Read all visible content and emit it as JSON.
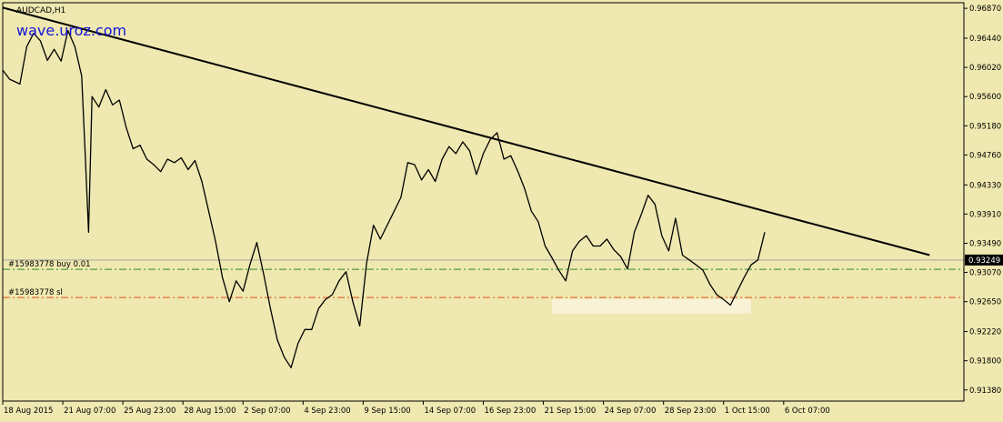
{
  "chart_data": {
    "type": "line",
    "title": "AUDCAD,H1",
    "watermark": "wave.uroz.com",
    "symbol": "AUDCAD",
    "timeframe": "H1",
    "ylim": [
      0.9122,
      0.9695
    ],
    "y_ticks": [
      "0.96870",
      "0.96440",
      "0.96020",
      "0.95600",
      "0.95180",
      "0.94760",
      "0.94330",
      "0.93910",
      "0.93490",
      "0.93070",
      "0.92650",
      "0.92220",
      "0.91800",
      "0.91380"
    ],
    "x_tick_labels": [
      "18 Aug 2015",
      "21 Aug 07:00",
      "25 Aug 23:00",
      "28 Aug 15:00",
      "2 Sep 07:00",
      "4 Sep 23:00",
      "9 Sep 15:00",
      "14 Sep 07:00",
      "16 Sep 23:00",
      "21 Sep 15:00",
      "24 Sep 07:00",
      "28 Sep 23:00",
      "1 Oct 15:00",
      "6 Oct 07:00"
    ],
    "x_count": 280,
    "series": [
      {
        "values": [
          [
            0,
            0.9598
          ],
          [
            2,
            0.9585
          ],
          [
            5,
            0.9578
          ],
          [
            7,
            0.9632
          ],
          [
            9,
            0.9651
          ],
          [
            11,
            0.964
          ],
          [
            13,
            0.9612
          ],
          [
            15,
            0.9628
          ],
          [
            17,
            0.9611
          ],
          [
            19,
            0.9655
          ],
          [
            21,
            0.9632
          ],
          [
            23,
            0.959
          ],
          [
            24,
            0.948
          ],
          [
            25,
            0.9365
          ],
          [
            26,
            0.956
          ],
          [
            28,
            0.9545
          ],
          [
            30,
            0.957
          ],
          [
            32,
            0.9548
          ],
          [
            34,
            0.9555
          ],
          [
            36,
            0.9515
          ],
          [
            38,
            0.9485
          ],
          [
            40,
            0.949
          ],
          [
            42,
            0.947
          ],
          [
            44,
            0.9462
          ],
          [
            46,
            0.9452
          ],
          [
            48,
            0.947
          ],
          [
            50,
            0.9465
          ],
          [
            52,
            0.9472
          ],
          [
            54,
            0.9455
          ],
          [
            56,
            0.9468
          ],
          [
            58,
            0.9438
          ],
          [
            60,
            0.9395
          ],
          [
            62,
            0.9352
          ],
          [
            64,
            0.93
          ],
          [
            66,
            0.9265
          ],
          [
            68,
            0.9295
          ],
          [
            70,
            0.928
          ],
          [
            72,
            0.9318
          ],
          [
            74,
            0.935
          ],
          [
            76,
            0.9305
          ],
          [
            78,
            0.9255
          ],
          [
            80,
            0.921
          ],
          [
            82,
            0.9185
          ],
          [
            84,
            0.917
          ],
          [
            86,
            0.9205
          ],
          [
            88,
            0.9225
          ],
          [
            90,
            0.9225
          ],
          [
            92,
            0.9255
          ],
          [
            94,
            0.9268
          ],
          [
            96,
            0.9275
          ],
          [
            98,
            0.9295
          ],
          [
            100,
            0.9308
          ],
          [
            102,
            0.9265
          ],
          [
            104,
            0.923
          ],
          [
            106,
            0.932
          ],
          [
            108,
            0.9375
          ],
          [
            110,
            0.9355
          ],
          [
            112,
            0.9375
          ],
          [
            114,
            0.9395
          ],
          [
            116,
            0.9415
          ],
          [
            118,
            0.9465
          ],
          [
            120,
            0.9462
          ],
          [
            122,
            0.944
          ],
          [
            124,
            0.9455
          ],
          [
            126,
            0.9438
          ],
          [
            128,
            0.947
          ],
          [
            130,
            0.9488
          ],
          [
            132,
            0.9478
          ],
          [
            134,
            0.9495
          ],
          [
            136,
            0.9482
          ],
          [
            138,
            0.9448
          ],
          [
            140,
            0.9478
          ],
          [
            142,
            0.9498
          ],
          [
            144,
            0.9508
          ],
          [
            146,
            0.947
          ],
          [
            148,
            0.9475
          ],
          [
            150,
            0.9453
          ],
          [
            152,
            0.9428
          ],
          [
            154,
            0.9395
          ],
          [
            156,
            0.938
          ],
          [
            158,
            0.9345
          ],
          [
            160,
            0.9328
          ],
          [
            162,
            0.931
          ],
          [
            164,
            0.9295
          ],
          [
            166,
            0.9338
          ],
          [
            168,
            0.9352
          ],
          [
            170,
            0.936
          ],
          [
            172,
            0.9345
          ],
          [
            174,
            0.9345
          ],
          [
            176,
            0.9355
          ],
          [
            178,
            0.934
          ],
          [
            180,
            0.933
          ],
          [
            182,
            0.9312
          ],
          [
            184,
            0.9365
          ],
          [
            186,
            0.939
          ],
          [
            188,
            0.9418
          ],
          [
            190,
            0.9405
          ],
          [
            192,
            0.936
          ],
          [
            194,
            0.9338
          ],
          [
            196,
            0.9385
          ],
          [
            198,
            0.9332
          ],
          [
            200,
            0.9325
          ],
          [
            202,
            0.9318
          ],
          [
            204,
            0.931
          ],
          [
            206,
            0.929
          ],
          [
            208,
            0.9275
          ],
          [
            210,
            0.9268
          ],
          [
            212,
            0.926
          ],
          [
            214,
            0.928
          ],
          [
            216,
            0.93
          ],
          [
            218,
            0.9318
          ],
          [
            220,
            0.9325
          ],
          [
            222,
            0.9365
          ]
        ]
      }
    ],
    "trendline": {
      "x": [
        0,
        270
      ],
      "y": [
        0.9688,
        0.9332
      ]
    },
    "horizontal_lines": [
      {
        "label": "#15983778 buy 0.01",
        "value": 0.93115,
        "color": "#2e8b22"
      },
      {
        "label": "#15983778 sl",
        "value": 0.9271,
        "color": "#e0501a"
      }
    ],
    "current_price": {
      "label": "0.93249",
      "value": 0.93249
    },
    "highlight_zone": {
      "x": [
        160,
        218
      ],
      "y": [
        0.9248,
        0.9269
      ]
    },
    "colors": {
      "background": "#efe8b0",
      "price": "#000000",
      "current_price_line": "#a8a8a0",
      "zone": "#f8f2d6"
    },
    "grid": false
  }
}
